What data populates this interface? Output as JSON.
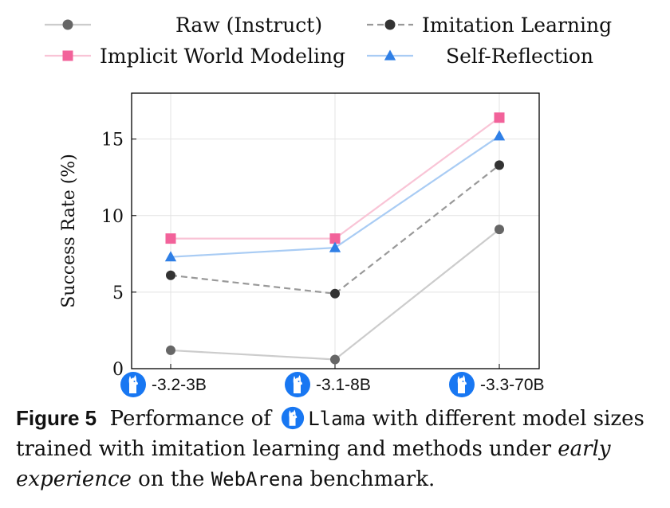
{
  "chart_data": {
    "type": "line",
    "categories": [
      "-3.2-3B",
      "-3.1-8B",
      "-3.3-70B"
    ],
    "ylabel": "Success Rate (%)",
    "ylim": [
      0,
      18
    ],
    "yticks": [
      0,
      5,
      10,
      15
    ],
    "grid": true,
    "legend_position": "top",
    "series": [
      {
        "name": "Raw (Instruct)",
        "values": [
          1.2,
          0.6,
          9.1
        ],
        "color": "#cccccc",
        "marker_color": "#666666",
        "marker": "circle",
        "dashed": false
      },
      {
        "name": "Imitation Learning",
        "values": [
          6.1,
          4.9,
          13.3
        ],
        "color": "#999999",
        "marker_color": "#333333",
        "marker": "circle",
        "dashed": true
      },
      {
        "name": "Implicit World Modeling",
        "values": [
          8.5,
          8.5,
          16.4
        ],
        "color": "#f9c4d6",
        "marker_color": "#f2629a",
        "marker": "square",
        "dashed": false
      },
      {
        "name": "Self-Reflection",
        "values": [
          7.3,
          7.9,
          15.2
        ],
        "color": "#a9ccf4",
        "marker_color": "#2f7fe6",
        "marker": "triangle",
        "dashed": false
      }
    ]
  },
  "icons": {
    "model_logo": "llama-icon",
    "logo_color": "#1877f2"
  },
  "caption": {
    "label": "Figure 5",
    "part1": "Performance of",
    "model": "Llama",
    "part2": "with different model sizes trained with imitation learning and methods under",
    "emph": "early experience",
    "part3": "on the",
    "benchmark": "WebArena",
    "part4": "benchmark."
  }
}
